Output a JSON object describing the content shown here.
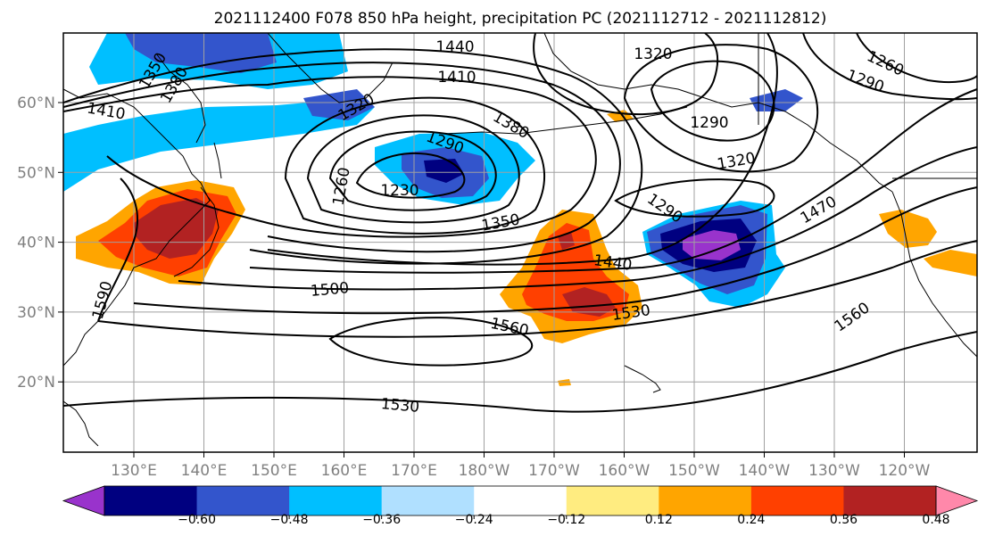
{
  "figure": {
    "title": "2021112400 F078 850 hPa height, precipitation PC (2021112712 - 2021112812)"
  },
  "map": {
    "lon_labels": [
      "130°E",
      "140°E",
      "150°E",
      "160°E",
      "170°E",
      "180°W",
      "170°W",
      "160°W",
      "150°W",
      "140°W",
      "130°W",
      "120°W"
    ],
    "lat_labels": [
      "60°N",
      "50°N",
      "40°N",
      "30°N",
      "20°N"
    ],
    "contour_labels": [
      "1440",
      "1410",
      "1320",
      "1260",
      "1290",
      "1380",
      "1350",
      "1410",
      "1380",
      "1350",
      "1320",
      "1290",
      "1230",
      "1260",
      "1320",
      "1290",
      "1470",
      "1350",
      "1440",
      "1500",
      "1530",
      "1560",
      "1560",
      "1590",
      "1530",
      "1320",
      "1290"
    ]
  },
  "colorbar": {
    "tick_labels": [
      "−0.60",
      "−0.48",
      "−0.36",
      "−0.24",
      "−0.12",
      "0.12",
      "0.24",
      "0.36",
      "0.48",
      "0.60"
    ],
    "colors": [
      "#9933cc",
      "#000080",
      "#3355cc",
      "#00bfff",
      "#b0e0ff",
      "#ffffff",
      "#ffec80",
      "#ffa500",
      "#ff4000",
      "#b22222",
      "#ff88aa"
    ]
  }
}
